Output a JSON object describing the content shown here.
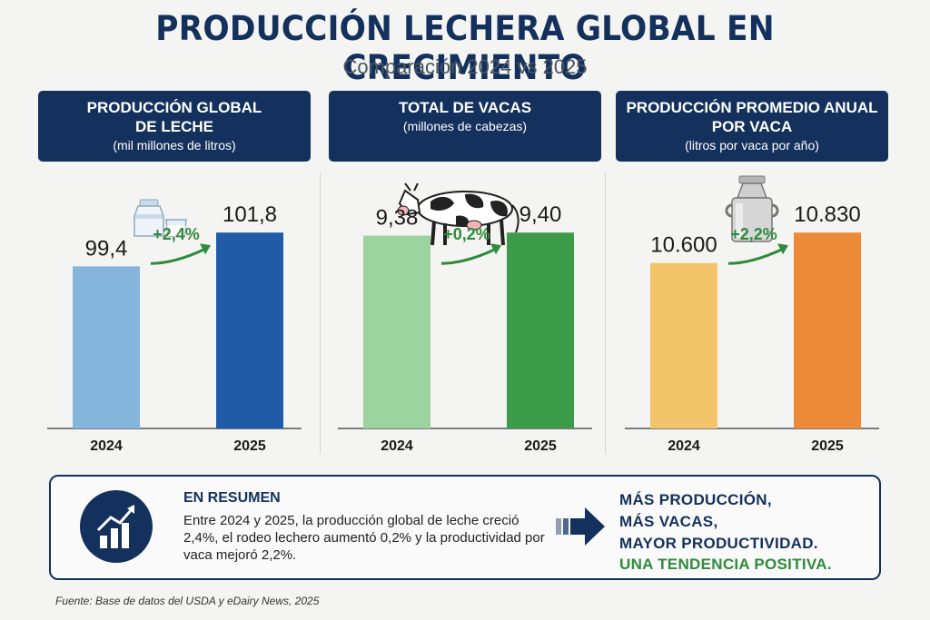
{
  "title": "PRODUCCIÓN LECHERA GLOBAL EN CRECIMIENTO",
  "subtitle": "Comparación 2024 vs 2025",
  "chart_data": [
    {
      "type": "bar",
      "title": "PRODUCCIÓN GLOBAL\nDE LECHE",
      "unit": "(mil millones de litros)",
      "icon": "milk-bottle-glass-icon",
      "categories": [
        "2024",
        "2025"
      ],
      "values": [
        99.4,
        101.8
      ],
      "value_labels": [
        "99,4",
        "101,8"
      ],
      "change_label": "+2,4%",
      "colors": [
        "#86b5dc",
        "#1f5ba6"
      ]
    },
    {
      "type": "bar",
      "title": "TOTAL DE VACAS",
      "unit": "(millones de cabezas)",
      "icon": "cow-icon",
      "categories": [
        "2024",
        "2025"
      ],
      "values": [
        9.38,
        9.4
      ],
      "value_labels": [
        "9,38",
        "9,40"
      ],
      "change_label": "+0,2%",
      "colors": [
        "#9dd39e",
        "#3c9b48"
      ]
    },
    {
      "type": "bar",
      "title": "PRODUCCIÓN PROMEDIO ANUAL\nPOR VACA",
      "unit": "(litros por vaca por año)",
      "icon": "milk-can-icon",
      "categories": [
        "2024",
        "2025"
      ],
      "values": [
        10600,
        10830
      ],
      "value_labels": [
        "10.600",
        "10.830"
      ],
      "change_label": "+2,2%",
      "colors": [
        "#f3c56b",
        "#ec8a37"
      ]
    }
  ],
  "summary": {
    "icon": "growth-chart-icon",
    "title": "EN RESUMEN",
    "text": "Entre 2024 y 2025, la producción global de leche creció 2,4%, el rodeo lechero aumentó 0,2% y la productividad por vaca mejoró 2,2%.",
    "conclusion": [
      "MÁS PRODUCCIÓN,",
      "MÁS VACAS,",
      "MAYOR PRODUCTIVIDAD.",
      "UNA TENDENCIA POSITIVA."
    ]
  },
  "source": "Fuente: Base de datos del USDA y eDairy News, 2025",
  "colors": {
    "navy": "#13315c",
    "green_text": "#2e8b3a",
    "change_green": "#2e8b3a"
  }
}
